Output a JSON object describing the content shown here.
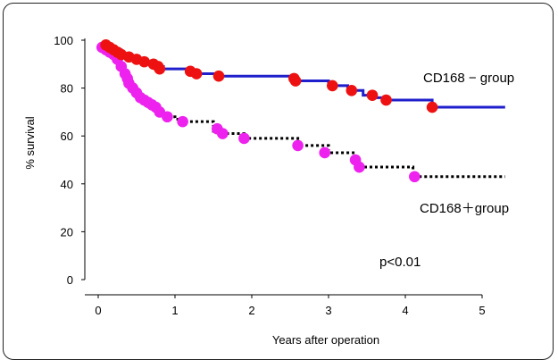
{
  "chart_data": {
    "type": "line",
    "title": "",
    "xlabel": "Years after operation",
    "ylabel": "% survival",
    "xlim": [
      0,
      5
    ],
    "ylim": [
      0,
      100
    ],
    "x_ticks": [
      0,
      1,
      2,
      3,
      4,
      5
    ],
    "y_ticks": [
      0,
      20,
      40,
      60,
      80,
      100
    ],
    "grid": false,
    "series": [
      {
        "name": "CD168 − group",
        "color": "#1f1fcc",
        "dot_color": "#ee1111",
        "line_style": "solid",
        "step": [
          [
            0,
            97
          ],
          [
            0.1,
            98
          ],
          [
            0.12,
            97
          ],
          [
            0.2,
            96
          ],
          [
            0.3,
            94
          ],
          [
            0.4,
            93
          ],
          [
            0.5,
            92
          ],
          [
            0.6,
            91
          ],
          [
            0.7,
            90
          ],
          [
            0.8,
            89
          ],
          [
            0.85,
            88
          ],
          [
            1.15,
            87
          ],
          [
            1.25,
            86
          ],
          [
            1.55,
            85
          ],
          [
            2.5,
            84
          ],
          [
            2.6,
            83
          ],
          [
            3.0,
            81
          ],
          [
            3.25,
            79
          ],
          [
            3.45,
            77
          ],
          [
            3.55,
            76
          ],
          [
            3.75,
            75
          ],
          [
            4.35,
            72
          ],
          [
            5.3,
            72
          ]
        ],
        "censor": [
          [
            0.1,
            98
          ],
          [
            0.15,
            97
          ],
          [
            0.2,
            96
          ],
          [
            0.25,
            95
          ],
          [
            0.3,
            94
          ],
          [
            0.4,
            93
          ],
          [
            0.5,
            92
          ],
          [
            0.6,
            91
          ],
          [
            0.72,
            90
          ],
          [
            0.78,
            89
          ],
          [
            0.8,
            88
          ],
          [
            1.2,
            87
          ],
          [
            1.28,
            86
          ],
          [
            1.57,
            85
          ],
          [
            2.55,
            84
          ],
          [
            2.57,
            83
          ],
          [
            3.05,
            81
          ],
          [
            3.3,
            79
          ],
          [
            3.57,
            77
          ],
          [
            3.75,
            75
          ],
          [
            4.35,
            72
          ]
        ]
      },
      {
        "name": "CD168＋group",
        "color": "#000000",
        "dot_color": "#ee22ee",
        "line_style": "dotted",
        "step": [
          [
            0,
            97
          ],
          [
            0.05,
            96
          ],
          [
            0.1,
            95
          ],
          [
            0.15,
            94
          ],
          [
            0.2,
            93
          ],
          [
            0.25,
            91
          ],
          [
            0.3,
            89
          ],
          [
            0.35,
            85
          ],
          [
            0.4,
            82
          ],
          [
            0.45,
            79
          ],
          [
            0.5,
            77
          ],
          [
            0.55,
            76
          ],
          [
            0.6,
            74
          ],
          [
            0.65,
            73
          ],
          [
            0.7,
            72
          ],
          [
            0.75,
            71
          ],
          [
            0.8,
            70
          ],
          [
            0.9,
            68
          ],
          [
            1.0,
            67
          ],
          [
            1.1,
            66
          ],
          [
            1.5,
            62
          ],
          [
            1.6,
            61
          ],
          [
            1.9,
            59
          ],
          [
            2.6,
            56
          ],
          [
            3.0,
            53
          ],
          [
            3.35,
            50
          ],
          [
            3.38,
            47
          ],
          [
            4.1,
            43
          ],
          [
            5.3,
            43
          ]
        ],
        "censor": [
          [
            0.05,
            97
          ],
          [
            0.1,
            96
          ],
          [
            0.15,
            95
          ],
          [
            0.2,
            94
          ],
          [
            0.25,
            92
          ],
          [
            0.3,
            89
          ],
          [
            0.35,
            86
          ],
          [
            0.38,
            84
          ],
          [
            0.4,
            82
          ],
          [
            0.45,
            80
          ],
          [
            0.5,
            78
          ],
          [
            0.55,
            76
          ],
          [
            0.6,
            75
          ],
          [
            0.65,
            74
          ],
          [
            0.7,
            73
          ],
          [
            0.75,
            72
          ],
          [
            0.8,
            70
          ],
          [
            0.9,
            68
          ],
          [
            1.1,
            66
          ],
          [
            1.55,
            63
          ],
          [
            1.62,
            61
          ],
          [
            1.9,
            59
          ],
          [
            2.6,
            56
          ],
          [
            2.95,
            53
          ],
          [
            3.35,
            50
          ],
          [
            3.4,
            47
          ],
          [
            4.12,
            43
          ]
        ]
      }
    ],
    "annotations": {
      "cd168_neg": "CD168  −  group",
      "cd168_pos": "CD168＋group",
      "pvalue": "p<0.01"
    }
  }
}
